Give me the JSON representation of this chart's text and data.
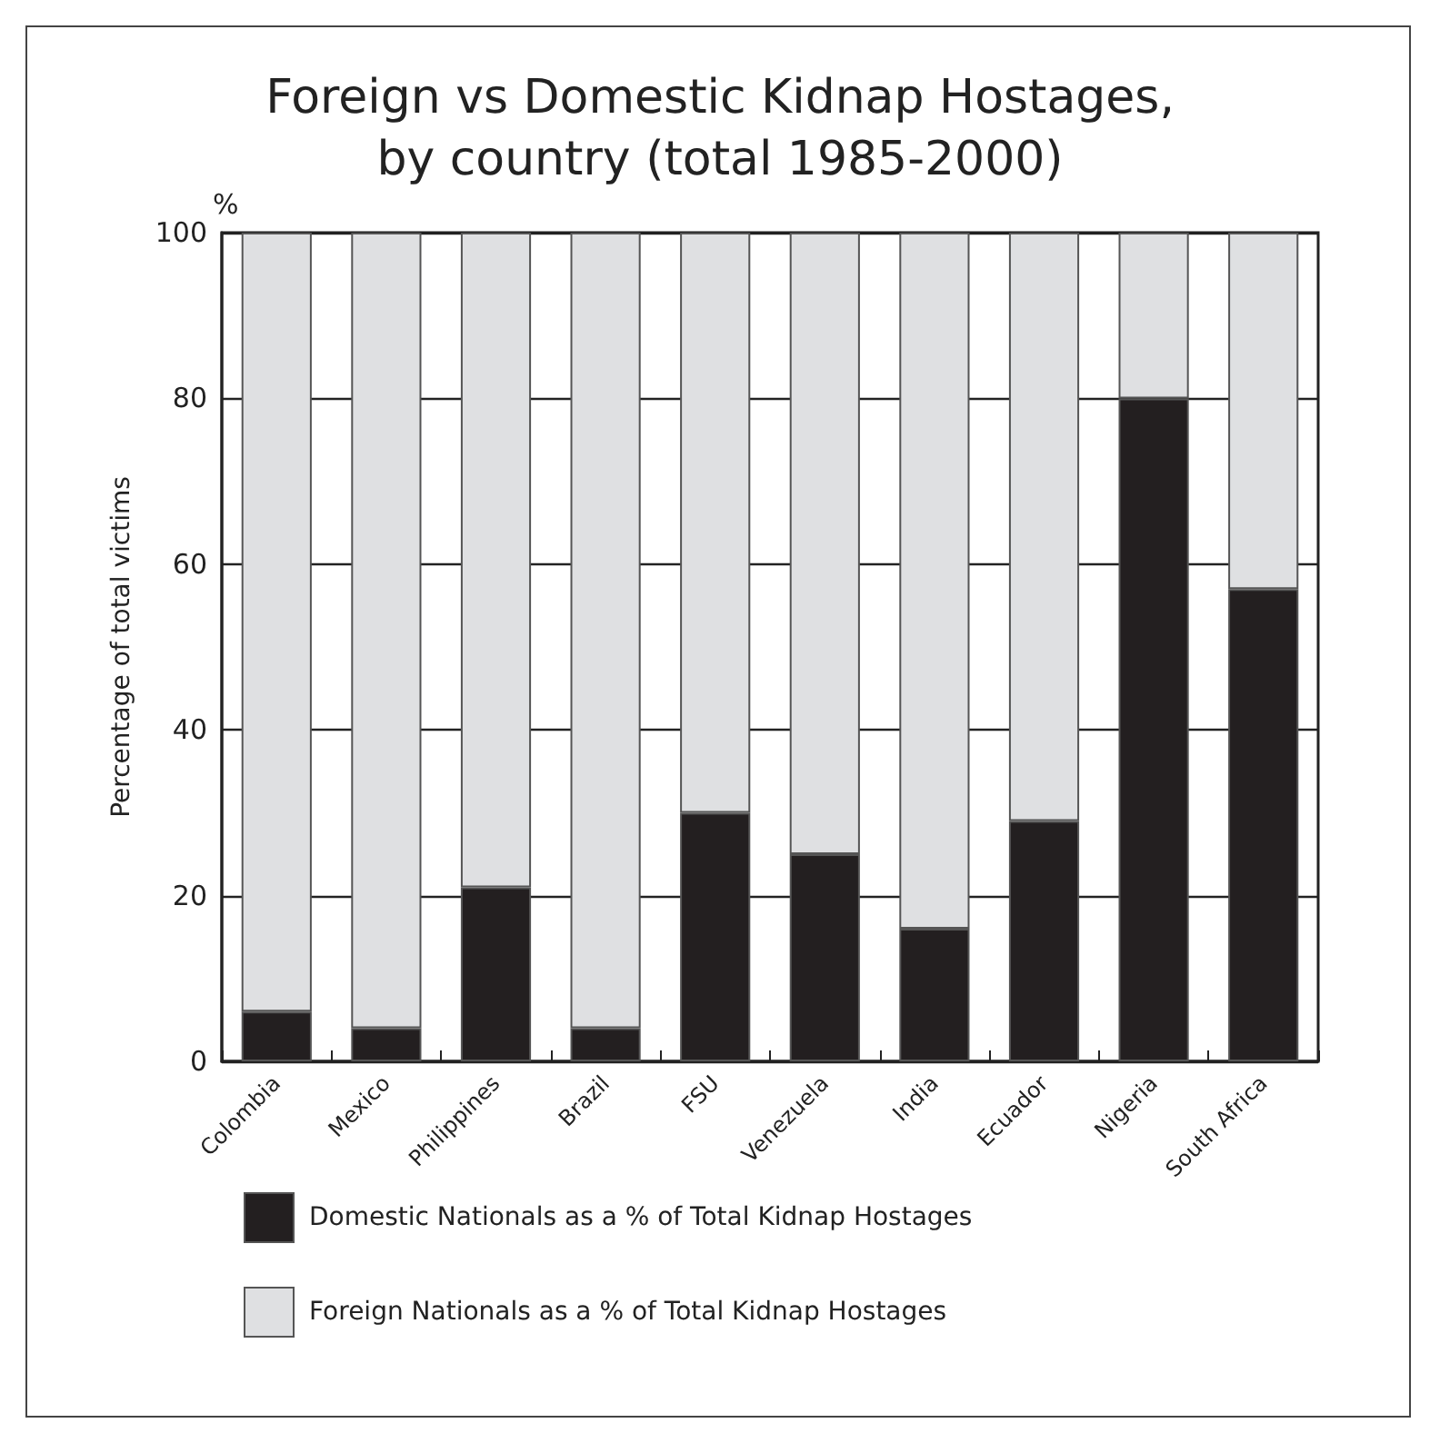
{
  "chart_data": {
    "type": "bar",
    "title": "Foreign vs Domestic Kidnap Hostages,\nby country (total 1985-2000)",
    "ylabel": "Percentage of total victims",
    "annotations": [
      "%"
    ],
    "categories": [
      "Colombia",
      "Mexico",
      "Philippines",
      "Brazil",
      "FSU",
      "Venezuela",
      "India",
      "Ecuador",
      "Nigeria",
      "South Africa"
    ],
    "stacked": true,
    "series": [
      {
        "name": "Domestic Nationals as a % of Total Kidnap Hostages",
        "color": "#231f20",
        "values": [
          6,
          4,
          21,
          4,
          30,
          25,
          16,
          29,
          80,
          57
        ]
      },
      {
        "name": "Foreign Nationals as a % of Total Kidnap Hostages",
        "color": "#dfe0e2",
        "values": [
          94,
          96,
          79,
          96,
          70,
          75,
          84,
          71,
          20,
          43
        ]
      }
    ],
    "ylim": [
      0,
      100
    ],
    "yticks": [
      0,
      20,
      40,
      60,
      80,
      100
    ],
    "grid": "y",
    "legend": "bottom left"
  }
}
